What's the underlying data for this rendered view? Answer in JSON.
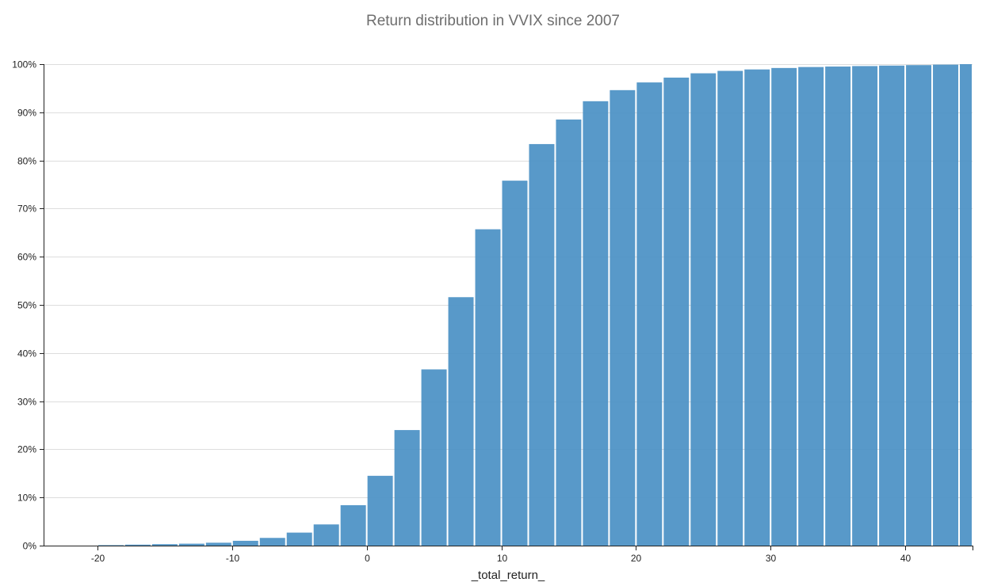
{
  "chart_data": {
    "type": "bar",
    "title": "Return distribution in VVIX since 2007",
    "xlabel": "_total_return_",
    "ylabel": "",
    "xlim": [
      -24,
      45
    ],
    "ylim": [
      0,
      100
    ],
    "bin_width": 2,
    "x_ticks": [
      -20,
      -10,
      0,
      10,
      20,
      30,
      40
    ],
    "y_ticks": [
      0,
      10,
      20,
      30,
      40,
      50,
      60,
      70,
      80,
      90,
      100
    ],
    "y_tick_format": "%",
    "color": "#4a90c4",
    "grid": "horizontal",
    "bins": [
      {
        "x": -24,
        "value": 0.0
      },
      {
        "x": -22,
        "value": 0.0
      },
      {
        "x": -20,
        "value": 0.1
      },
      {
        "x": -18,
        "value": 0.2
      },
      {
        "x": -16,
        "value": 0.3
      },
      {
        "x": -14,
        "value": 0.4
      },
      {
        "x": -12,
        "value": 0.6
      },
      {
        "x": -10,
        "value": 1.0
      },
      {
        "x": -8,
        "value": 1.6
      },
      {
        "x": -6,
        "value": 2.7
      },
      {
        "x": -4,
        "value": 4.4
      },
      {
        "x": -2,
        "value": 8.4
      },
      {
        "x": 0,
        "value": 14.5
      },
      {
        "x": 2,
        "value": 24.0
      },
      {
        "x": 4,
        "value": 36.6
      },
      {
        "x": 6,
        "value": 51.6
      },
      {
        "x": 8,
        "value": 65.7
      },
      {
        "x": 10,
        "value": 75.8
      },
      {
        "x": 12,
        "value": 83.4
      },
      {
        "x": 14,
        "value": 88.5
      },
      {
        "x": 16,
        "value": 92.3
      },
      {
        "x": 18,
        "value": 94.6
      },
      {
        "x": 20,
        "value": 96.2
      },
      {
        "x": 22,
        "value": 97.2
      },
      {
        "x": 24,
        "value": 98.1
      },
      {
        "x": 26,
        "value": 98.6
      },
      {
        "x": 28,
        "value": 98.9
      },
      {
        "x": 30,
        "value": 99.2
      },
      {
        "x": 32,
        "value": 99.4
      },
      {
        "x": 34,
        "value": 99.5
      },
      {
        "x": 36,
        "value": 99.6
      },
      {
        "x": 38,
        "value": 99.7
      },
      {
        "x": 40,
        "value": 99.8
      },
      {
        "x": 42,
        "value": 99.9
      },
      {
        "x": 44,
        "value": 100.0
      }
    ]
  }
}
